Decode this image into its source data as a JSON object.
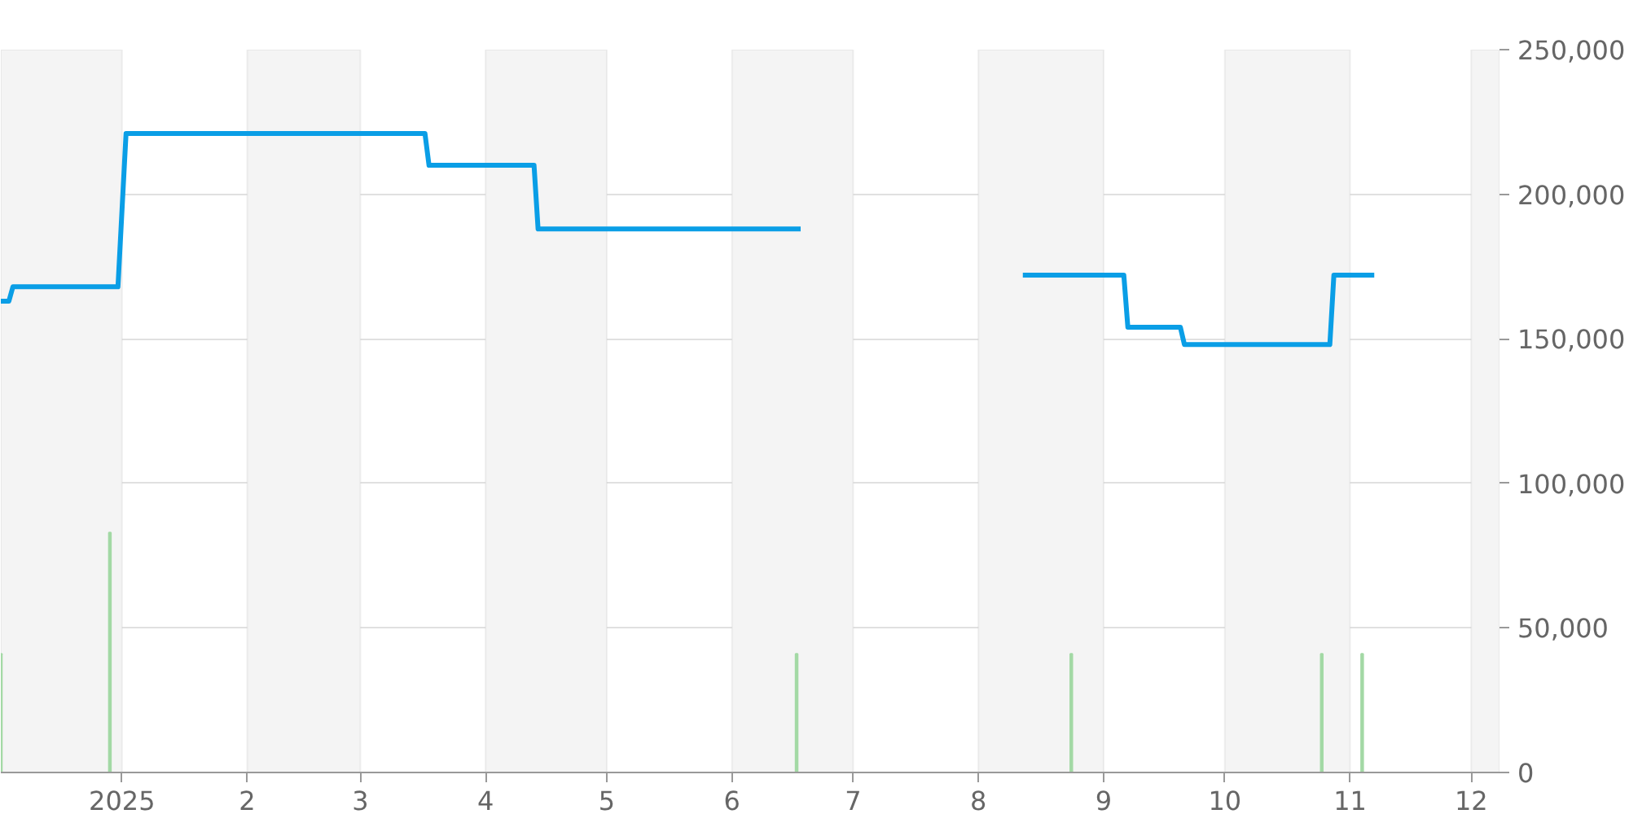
{
  "chart_data": {
    "type": "line",
    "xlim": [
      "2024-12-02",
      "2025-12-08"
    ],
    "xticks": [
      {
        "value": "2025-01-01",
        "label": "2025"
      },
      {
        "value": "2025-02-01",
        "label": "2"
      },
      {
        "value": "2025-03-01",
        "label": "3"
      },
      {
        "value": "2025-04-01",
        "label": "4"
      },
      {
        "value": "2025-05-01",
        "label": "5"
      },
      {
        "value": "2025-06-01",
        "label": "6"
      },
      {
        "value": "2025-07-01",
        "label": "7"
      },
      {
        "value": "2025-08-01",
        "label": "8"
      },
      {
        "value": "2025-09-01",
        "label": "9"
      },
      {
        "value": "2025-10-01",
        "label": "10"
      },
      {
        "value": "2025-11-01",
        "label": "11"
      },
      {
        "value": "2025-12-01",
        "label": "12"
      }
    ],
    "ylim": [
      0,
      250000
    ],
    "yticks": [
      {
        "value": 0,
        "label": "0"
      },
      {
        "value": 50000,
        "label": "50,000"
      },
      {
        "value": 100000,
        "label": "100,000"
      },
      {
        "value": 150000,
        "label": "150,000"
      },
      {
        "value": 200000,
        "label": "200,000"
      },
      {
        "value": 250000,
        "label": "250,000"
      }
    ],
    "grid": "y",
    "bands": [
      {
        "axis": "x",
        "from": "2024-12-02",
        "to": "2025-01-01",
        "color": "#f4f4f4"
      },
      {
        "axis": "x",
        "from": "2025-02-01",
        "to": "2025-03-01",
        "color": "#f4f4f4"
      },
      {
        "axis": "x",
        "from": "2025-04-01",
        "to": "2025-05-01",
        "color": "#f4f4f4"
      },
      {
        "axis": "x",
        "from": "2025-06-01",
        "to": "2025-07-01",
        "color": "#f4f4f4"
      },
      {
        "axis": "x",
        "from": "2025-08-01",
        "to": "2025-09-01",
        "color": "#f4f4f4"
      },
      {
        "axis": "x",
        "from": "2025-10-01",
        "to": "2025-11-01",
        "color": "#f4f4f4"
      },
      {
        "axis": "x",
        "from": "2025-12-01",
        "to": "2025-12-08",
        "color": "#f4f4f4"
      }
    ],
    "series": [
      {
        "type": "bar",
        "color": "#a3d9a5",
        "x": [
          "2024-12-02",
          "2024-12-29",
          "2025-06-17",
          "2025-08-24",
          "2025-10-25",
          "2025-11-04"
        ],
        "values": [
          41000,
          83000,
          41000,
          41000,
          41000,
          41000
        ]
      },
      {
        "color": "#0a9ee6",
        "x": [
          "2024-12-02",
          "2024-12-04",
          "2024-12-05",
          "2024-12-31",
          "2025-01-02",
          "2025-03-17",
          "2025-03-18",
          "2025-04-13",
          "2025-04-14",
          "2025-06-18",
          "2025-07-15",
          "2025-08-12",
          "2025-09-06",
          "2025-09-07",
          "2025-09-20",
          "2025-09-21",
          "2025-10-27",
          "2025-10-28",
          "2025-11-07"
        ],
        "values": [
          163000,
          163000,
          168000,
          168000,
          221000,
          221000,
          210000,
          210000,
          188000,
          188000,
          null,
          172000,
          172000,
          154000,
          154000,
          148000,
          148000,
          172000,
          172000
        ]
      }
    ]
  }
}
